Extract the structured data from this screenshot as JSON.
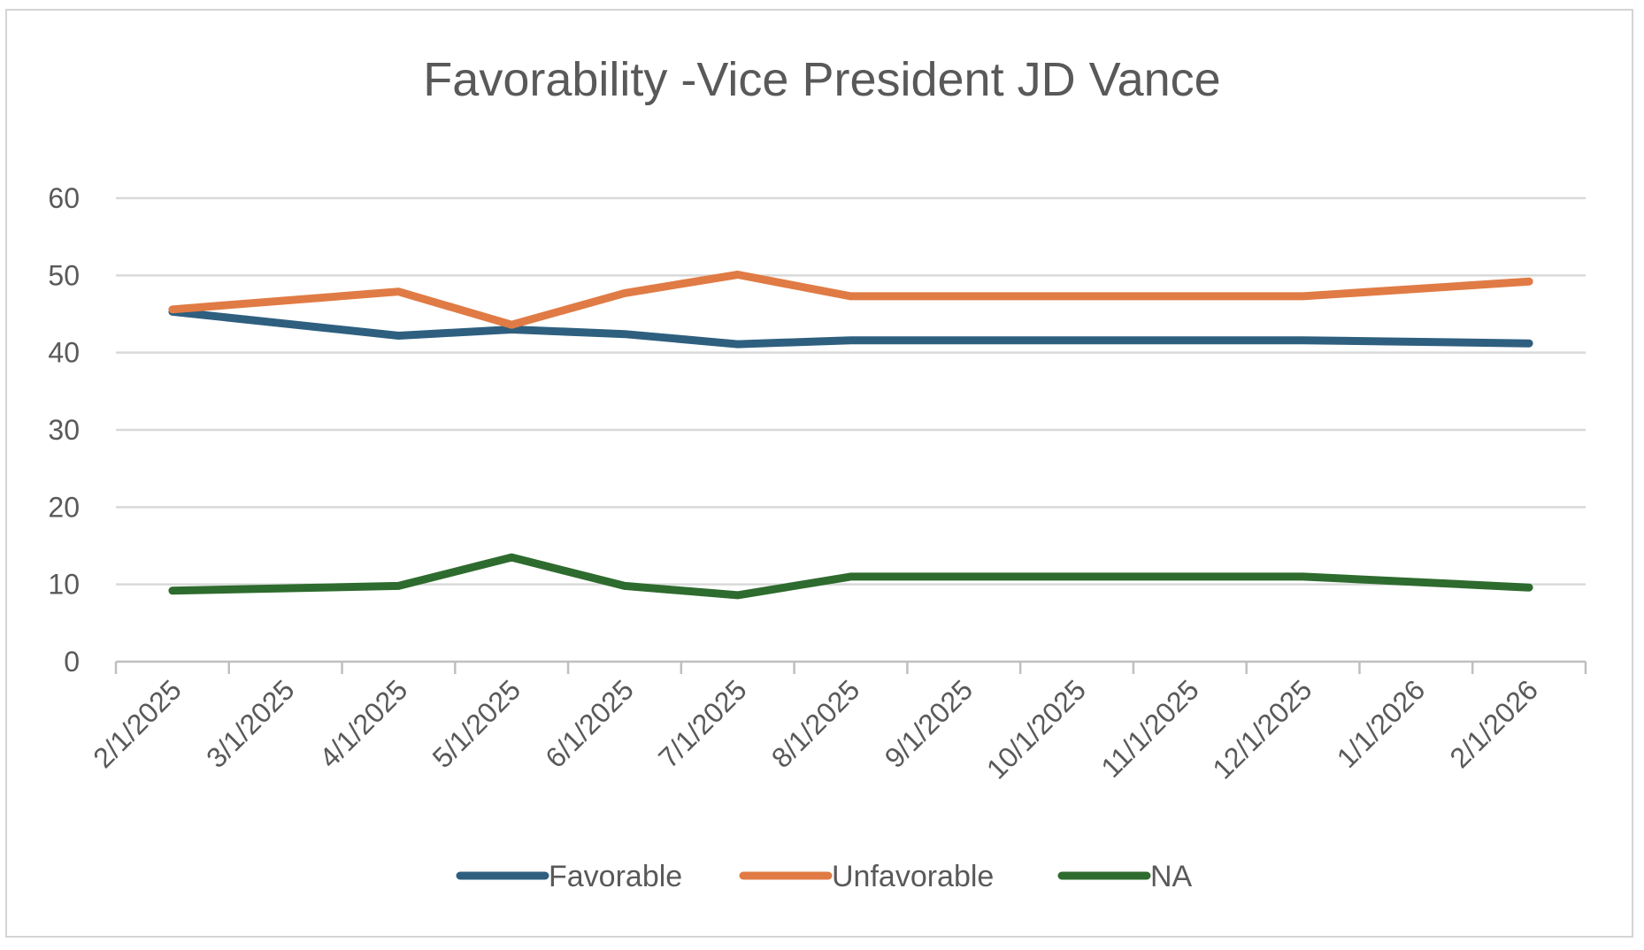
{
  "chart_data": {
    "type": "line",
    "title": "Favorability -Vice President JD Vance",
    "xlabel": "",
    "ylabel": "",
    "ylim": [
      0,
      60
    ],
    "yticks": [
      0,
      10,
      20,
      30,
      40,
      50,
      60
    ],
    "grid": true,
    "legend_position": "bottom",
    "categories": [
      "2/1/2025",
      "3/1/2025",
      "4/1/2025",
      "5/1/2025",
      "6/1/2025",
      "7/1/2025",
      "8/1/2025",
      "9/1/2025",
      "10/1/2025",
      "11/1/2025",
      "12/1/2025",
      "1/1/2026",
      "2/1/2026"
    ],
    "series": [
      {
        "name": "Favorable",
        "color": "#2e5f7f",
        "points": [
          {
            "x": "2/1/2025",
            "offset": 0.5,
            "y": 45.3
          },
          {
            "x": "4/1/2025",
            "offset": 0.5,
            "y": 42.2
          },
          {
            "x": "5/1/2025",
            "offset": 0.5,
            "y": 43.0
          },
          {
            "x": "6/1/2025",
            "offset": 0.5,
            "y": 42.4
          },
          {
            "x": "7/1/2025",
            "offset": 0.5,
            "y": 41.1
          },
          {
            "x": "8/1/2025",
            "offset": 0.5,
            "y": 41.6
          },
          {
            "x": "12/1/2025",
            "offset": 0.5,
            "y": 41.6
          },
          {
            "x": "2/1/2026",
            "offset": 0.5,
            "y": 41.2
          }
        ]
      },
      {
        "name": "Unfavorable",
        "color": "#e07b45",
        "points": [
          {
            "x": "2/1/2025",
            "offset": 0.5,
            "y": 45.6
          },
          {
            "x": "4/1/2025",
            "offset": 0.5,
            "y": 47.9
          },
          {
            "x": "5/1/2025",
            "offset": 0.5,
            "y": 43.6
          },
          {
            "x": "6/1/2025",
            "offset": 0.5,
            "y": 47.7
          },
          {
            "x": "7/1/2025",
            "offset": 0.5,
            "y": 50.1
          },
          {
            "x": "8/1/2025",
            "offset": 0.5,
            "y": 47.3
          },
          {
            "x": "12/1/2025",
            "offset": 0.5,
            "y": 47.3
          },
          {
            "x": "2/1/2026",
            "offset": 0.5,
            "y": 49.2
          }
        ]
      },
      {
        "name": "NA",
        "color": "#2e6b2e",
        "points": [
          {
            "x": "2/1/2025",
            "offset": 0.5,
            "y": 9.2
          },
          {
            "x": "4/1/2025",
            "offset": 0.5,
            "y": 9.8
          },
          {
            "x": "5/1/2025",
            "offset": 0.5,
            "y": 13.5
          },
          {
            "x": "6/1/2025",
            "offset": 0.5,
            "y": 9.8
          },
          {
            "x": "7/1/2025",
            "offset": 0.5,
            "y": 8.6
          },
          {
            "x": "8/1/2025",
            "offset": 0.5,
            "y": 11.0
          },
          {
            "x": "12/1/2025",
            "offset": 0.5,
            "y": 11.0
          },
          {
            "x": "2/1/2026",
            "offset": 0.5,
            "y": 9.6
          }
        ]
      }
    ],
    "colors": {
      "grid": "#d9d9d9",
      "axis": "#bfbfbf",
      "text": "#595959"
    }
  }
}
